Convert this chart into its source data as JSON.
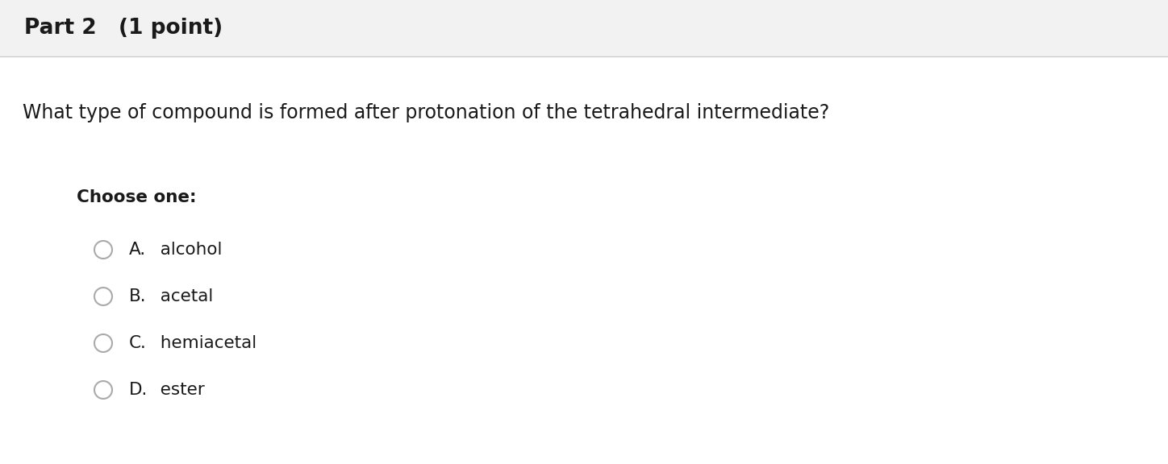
{
  "header_text": "Part 2   (1 point)",
  "header_bg": "#f2f2f2",
  "header_border": "#cccccc",
  "body_bg": "#ffffff",
  "question_text": "What type of compound is formed after protonation of the tetrahedral intermediate?",
  "choose_label": "Choose one:",
  "options": [
    {
      "letter": "A.",
      "text": "  alcohol"
    },
    {
      "letter": "B.",
      "text": "  acetal"
    },
    {
      "letter": "C.",
      "text": "  hemiacetal"
    },
    {
      "letter": "D.",
      "text": "  ester"
    }
  ],
  "header_fontsize": 19,
  "question_fontsize": 17,
  "choose_fontsize": 15.5,
  "option_fontsize": 15.5,
  "text_color": "#1a1a1a",
  "circle_color": "#aaaaaa",
  "fig_width": 14.48,
  "fig_height": 5.76,
  "dpi": 100
}
